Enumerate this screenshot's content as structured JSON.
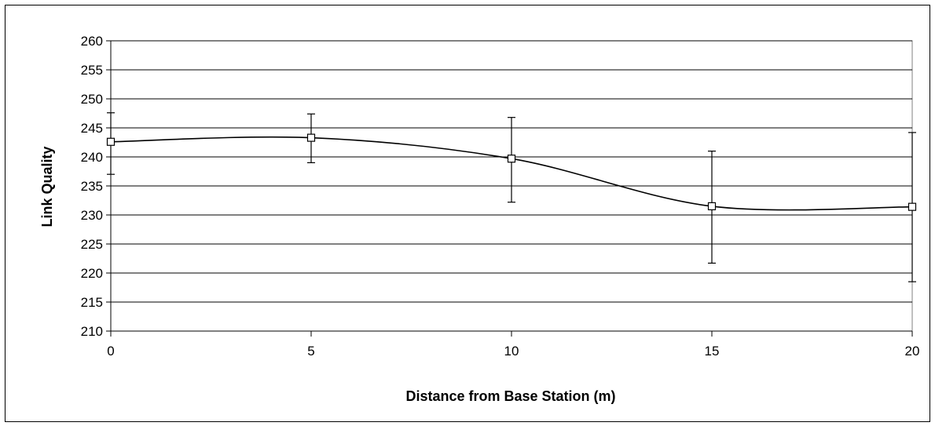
{
  "chart_data": {
    "type": "line",
    "title": "",
    "xlabel": "Distance from Base Station (m)",
    "ylabel": "Link Quality",
    "x": [
      0,
      5,
      10,
      15,
      20
    ],
    "xticks": [
      "0",
      "5",
      "10",
      "15",
      "20"
    ],
    "yticks": [
      "210",
      "215",
      "220",
      "225",
      "230",
      "235",
      "240",
      "245",
      "250",
      "255",
      "260"
    ],
    "xlim": [
      0,
      20
    ],
    "ylim": [
      210,
      260
    ],
    "grid": "horizontal",
    "legend": "none",
    "smoothed": true,
    "marker": "open-square",
    "series": [
      {
        "values": [
          242.6,
          243.3,
          239.7,
          231.5,
          231.4
        ],
        "error_low": [
          237.0,
          239.0,
          232.2,
          221.7,
          218.5
        ],
        "error_high": [
          247.6,
          247.4,
          246.8,
          241.0,
          244.2
        ]
      }
    ],
    "colors": {
      "line": "#000000",
      "grid": "#000000",
      "plot_border": "#808080"
    }
  }
}
